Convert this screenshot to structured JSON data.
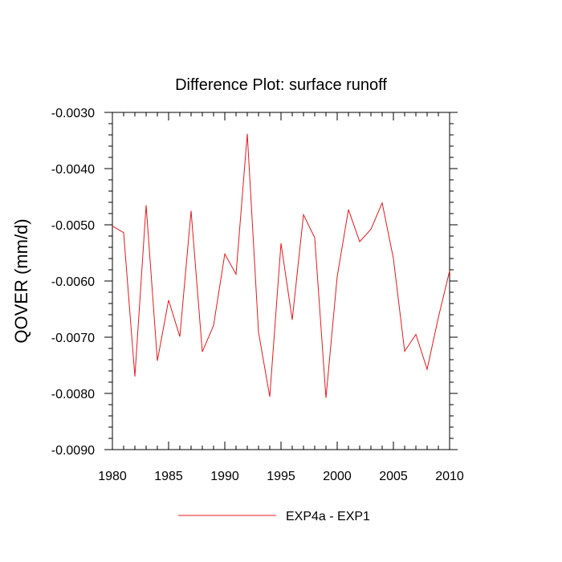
{
  "chart_data": {
    "type": "line",
    "title": "Difference Plot: surface runoff",
    "xlabel": "",
    "ylabel": "QOVER  (mm/d)",
    "xlim": [
      1980,
      2010
    ],
    "ylim": [
      -0.009,
      -0.003
    ],
    "x_ticks": [
      1980,
      1985,
      1990,
      1995,
      2000,
      2005,
      2010
    ],
    "x_tick_labels": [
      "1980",
      "1985",
      "1990",
      "1995",
      "2000",
      "2005",
      "2010"
    ],
    "y_ticks": [
      -0.003,
      -0.004,
      -0.005,
      -0.006,
      -0.007,
      -0.008,
      -0.009
    ],
    "y_tick_labels": [
      "-0.0030",
      "-0.0040",
      "-0.0050",
      "-0.0060",
      "-0.0070",
      "-0.0080",
      "-0.0090"
    ],
    "grid": false,
    "legend_position": "bottom-center",
    "series": [
      {
        "name": "EXP4a - EXP1",
        "color": "#e8181c",
        "x": [
          1980,
          1981,
          1982,
          1983,
          1984,
          1985,
          1986,
          1987,
          1988,
          1989,
          1990,
          1991,
          1992,
          1993,
          1994,
          1995,
          1996,
          1997,
          1998,
          1999,
          2000,
          2001,
          2002,
          2003,
          2004,
          2005,
          2006,
          2007,
          2008,
          2009,
          2010
        ],
        "values": [
          -0.00502,
          -0.00514,
          -0.0077,
          -0.00465,
          -0.00742,
          -0.00634,
          -0.00699,
          -0.00475,
          -0.00726,
          -0.00679,
          -0.00552,
          -0.00588,
          -0.00338,
          -0.00691,
          -0.00806,
          -0.00533,
          -0.00669,
          -0.00482,
          -0.00523,
          -0.00808,
          -0.00592,
          -0.00473,
          -0.0053,
          -0.00508,
          -0.00461,
          -0.0056,
          -0.00725,
          -0.00695,
          -0.00757,
          -0.00665,
          -0.00582
        ]
      }
    ]
  }
}
